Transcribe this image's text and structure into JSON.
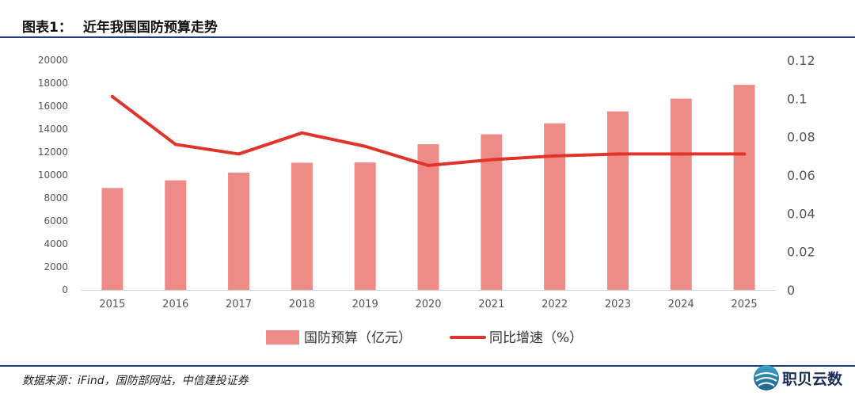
{
  "header": {
    "figure_number": "图表1：",
    "title": "近年我国国防预算走势"
  },
  "footer": {
    "source": "数据来源：iFind，国防部网站，中信建投证券",
    "brand": "职贝云数"
  },
  "colors": {
    "bar": "#ef8b87",
    "line": "#e0342a",
    "rule": "#1f3d7a"
  },
  "chart_data": {
    "type": "bar",
    "categories": [
      "2015",
      "2016",
      "2017",
      "2018",
      "2019",
      "2020",
      "2021",
      "2022",
      "2023",
      "2024",
      "2025"
    ],
    "series": [
      {
        "name": "国防预算（亿元）",
        "type": "bar",
        "axis": "left",
        "values": [
          8870,
          9540,
          10210,
          11070,
          11090,
          12680,
          13550,
          14500,
          15540,
          16650,
          17850
        ]
      },
      {
        "name": "同比增速（%）",
        "type": "line",
        "axis": "right",
        "values": [
          0.101,
          0.076,
          0.071,
          0.082,
          0.075,
          0.065,
          0.068,
          0.07,
          0.071,
          0.071,
          0.071
        ]
      }
    ],
    "y_left": {
      "min": 0,
      "max": 20000,
      "ticks": [
        "0",
        "2000",
        "4000",
        "6000",
        "8000",
        "10000",
        "12000",
        "14000",
        "16000",
        "18000",
        "20000"
      ]
    },
    "y_right": {
      "min": 0,
      "max": 0.12,
      "ticks": [
        "0",
        "0.02",
        "0.04",
        "0.06",
        "0.08",
        "0.1",
        "0.12"
      ]
    },
    "grid": false,
    "legend_position": "bottom"
  }
}
